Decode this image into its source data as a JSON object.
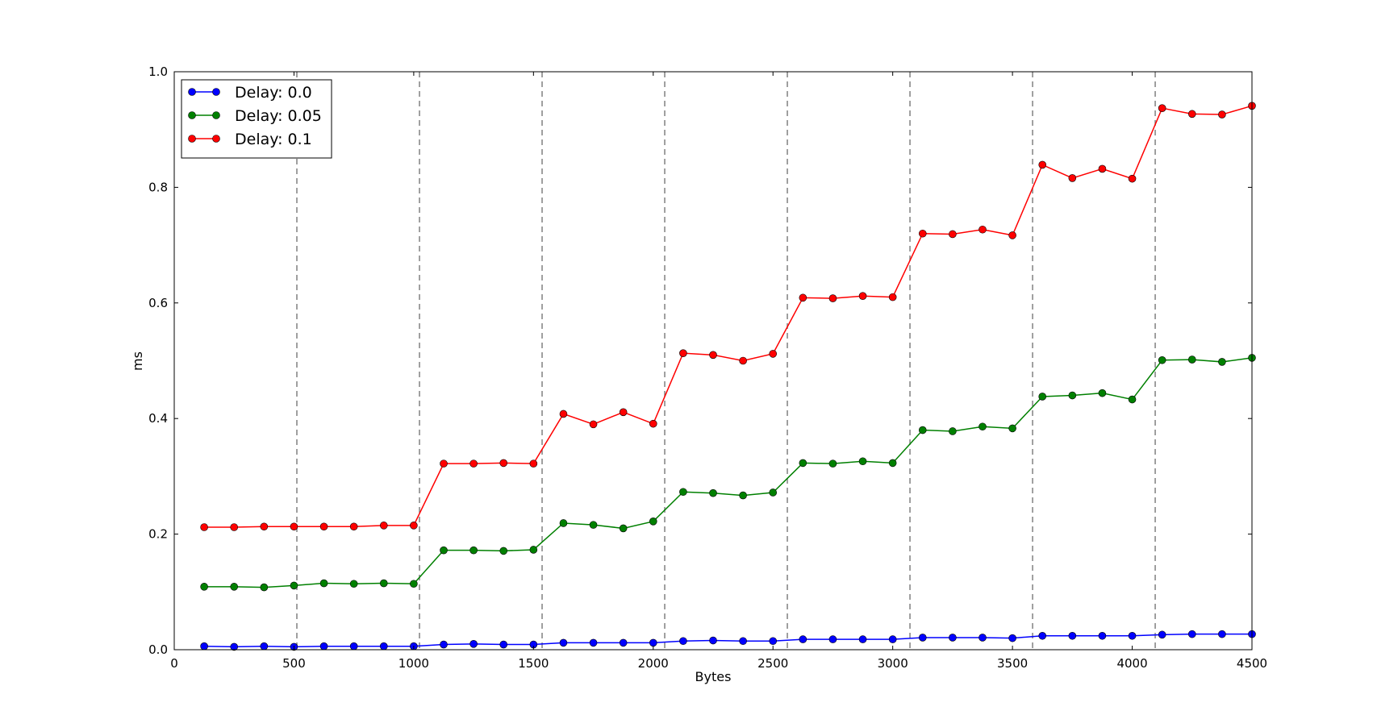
{
  "chart_data": {
    "type": "line",
    "title": "",
    "xlabel": "Bytes",
    "ylabel": "ms",
    "xlim": [
      0,
      4500
    ],
    "ylim": [
      0,
      1.0
    ],
    "xticks": [
      0,
      500,
      1000,
      1500,
      2000,
      2500,
      3000,
      3500,
      4000,
      4500
    ],
    "xtick_labels": [
      "0",
      "500",
      "1000",
      "1500",
      "2000",
      "2500",
      "3000",
      "3500",
      "4000",
      "4500"
    ],
    "yticks": [
      0,
      0.2,
      0.4,
      0.6,
      0.8,
      1.0
    ],
    "ytick_labels": [
      "0.0",
      "0.2",
      "0.4",
      "0.6",
      "0.8",
      "1.0"
    ],
    "grid": false,
    "vlines": [
      512,
      1024,
      1536,
      2048,
      2560,
      3072,
      3584,
      4096
    ],
    "vline_color": "#808080",
    "legend_position": "top-left",
    "x": [
      125,
      250,
      375,
      500,
      625,
      750,
      875,
      1000,
      1125,
      1250,
      1375,
      1500,
      1625,
      1750,
      1875,
      2000,
      2125,
      2250,
      2375,
      2500,
      2625,
      2750,
      2875,
      3000,
      3125,
      3250,
      3375,
      3500,
      3625,
      3750,
      3875,
      4000,
      4125,
      4250,
      4375,
      4500
    ],
    "series": [
      {
        "name": "Delay: 0.0",
        "color": "#0000ff",
        "values": [
          0.006,
          0.005,
          0.006,
          0.005,
          0.006,
          0.006,
          0.006,
          0.006,
          0.009,
          0.01,
          0.009,
          0.009,
          0.012,
          0.012,
          0.012,
          0.012,
          0.015,
          0.016,
          0.015,
          0.015,
          0.018,
          0.018,
          0.018,
          0.018,
          0.021,
          0.021,
          0.021,
          0.02,
          0.024,
          0.024,
          0.024,
          0.024,
          0.026,
          0.027,
          0.027,
          0.027
        ]
      },
      {
        "name": "Delay: 0.05",
        "color": "#008000",
        "values": [
          0.109,
          0.109,
          0.108,
          0.111,
          0.115,
          0.114,
          0.115,
          0.114,
          0.172,
          0.172,
          0.171,
          0.173,
          0.219,
          0.216,
          0.21,
          0.222,
          0.273,
          0.271,
          0.267,
          0.272,
          0.323,
          0.322,
          0.326,
          0.323,
          0.38,
          0.378,
          0.386,
          0.383,
          0.438,
          0.44,
          0.444,
          0.433,
          0.501,
          0.502,
          0.498,
          0.505
        ]
      },
      {
        "name": "Delay: 0.1",
        "color": "#ff0000",
        "values": [
          0.212,
          0.212,
          0.213,
          0.213,
          0.213,
          0.213,
          0.215,
          0.215,
          0.322,
          0.322,
          0.323,
          0.322,
          0.408,
          0.39,
          0.411,
          0.391,
          0.513,
          0.51,
          0.5,
          0.512,
          0.609,
          0.608,
          0.612,
          0.61,
          0.72,
          0.719,
          0.727,
          0.717,
          0.839,
          0.816,
          0.832,
          0.815,
          0.937,
          0.927,
          0.926,
          0.941
        ]
      }
    ]
  }
}
